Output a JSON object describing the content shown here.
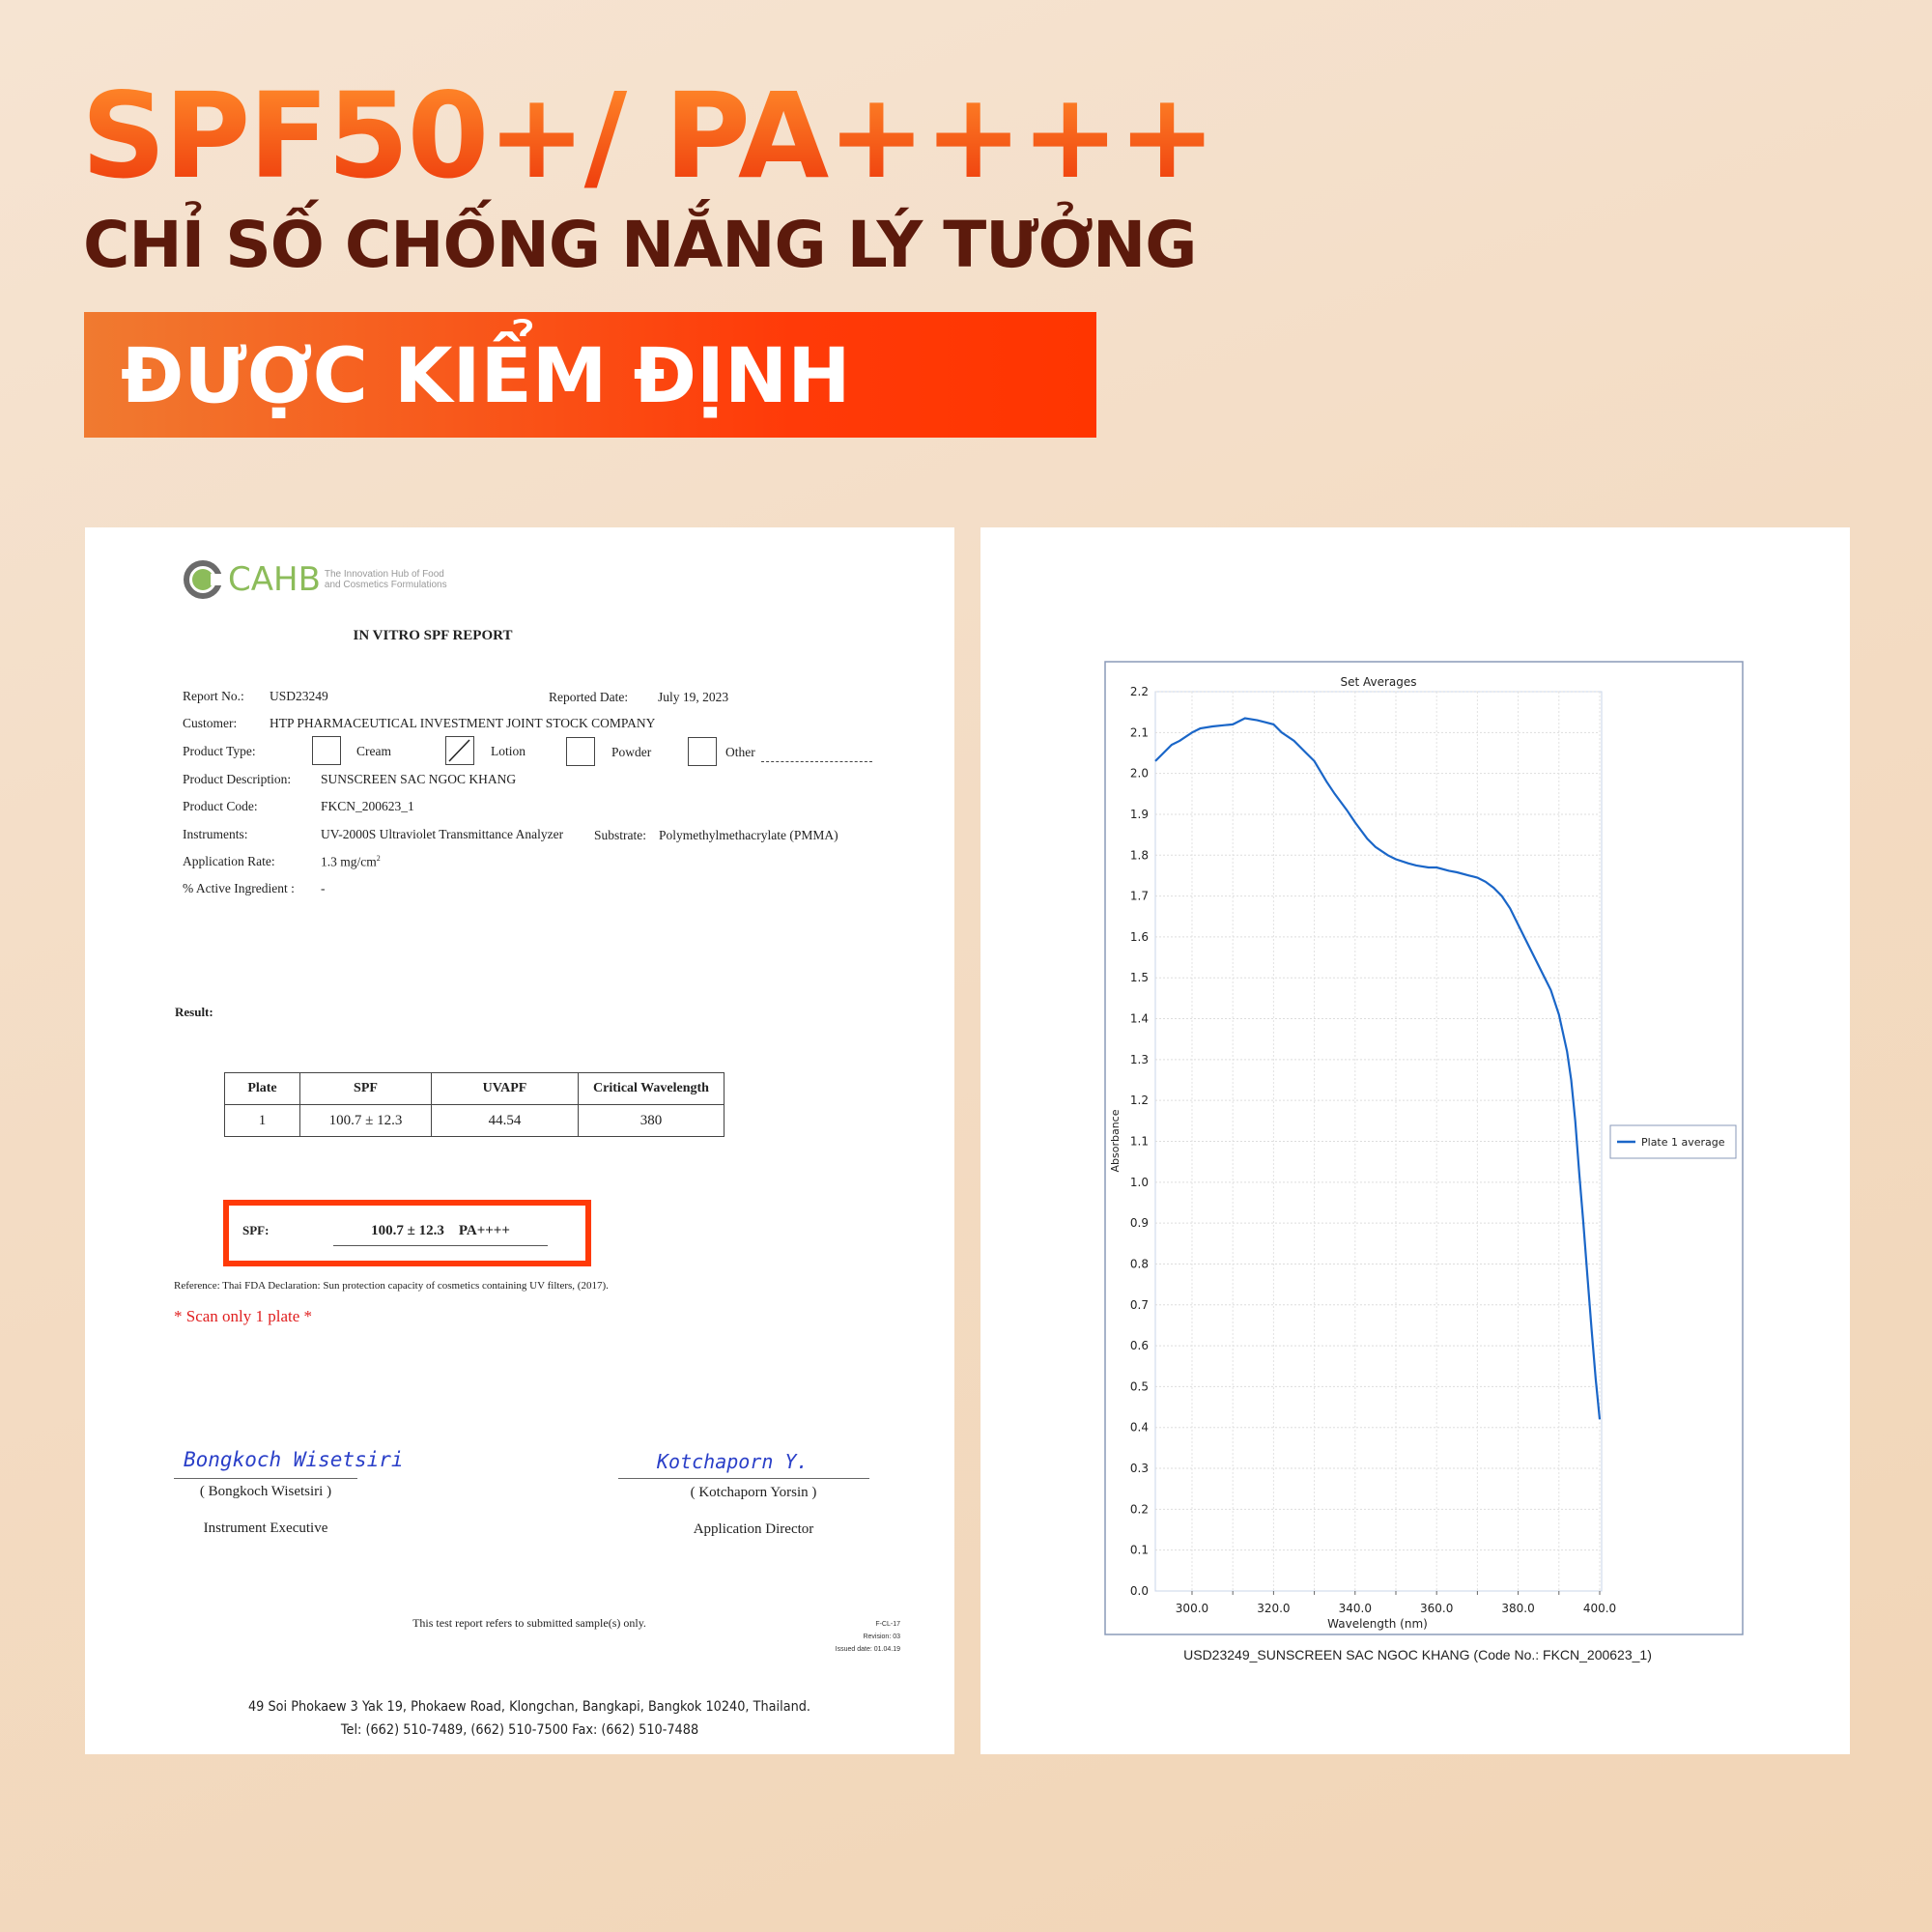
{
  "headline": "SPF50+/ PA++++",
  "subheadline": "CHỈ SỐ CHỐNG NẮNG LÝ TƯỞNG",
  "banner": "ĐƯỢC KIỂM ĐỊNH",
  "colors": {
    "accent": "#ff3a08",
    "title_dark": "#5c1a0c",
    "curve": "#1a66c8",
    "highlight_box": "#ff3a08"
  },
  "report": {
    "logo": {
      "name": "CAHB",
      "tagline1": "The Innovation Hub of Food",
      "tagline2": "and Cosmetics Formulations"
    },
    "title": "IN VITRO SPF REPORT",
    "report_no_label": "Report No.:",
    "report_no": "USD23249",
    "date_label": "Reported Date:",
    "date": "July 19, 2023",
    "customer_label": "Customer:",
    "customer": "HTP PHARMACEUTICAL INVESTMENT JOINT STOCK COMPANY",
    "product_type_label": "Product Type:",
    "product_types": [
      {
        "label": "Cream",
        "checked": false
      },
      {
        "label": "Lotion",
        "checked": true
      },
      {
        "label": "Powder",
        "checked": false
      },
      {
        "label": "Other",
        "checked": false
      }
    ],
    "description_label": "Product Description:",
    "description": "SUNSCREEN SAC NGOC KHANG",
    "code_label": "Product Code:",
    "code": "FKCN_200623_1",
    "instruments_label": "Instruments:",
    "instruments": "UV-2000S Ultraviolet Transmittance Analyzer",
    "substrate_label": "Substrate:",
    "substrate": "Polymethylmethacrylate (PMMA)",
    "rate_label": "Application Rate:",
    "rate": "1.3 mg/cm",
    "rate_sup": "2",
    "active_label": "% Active Ingredient  :",
    "active": "-",
    "result_label": "Result:",
    "table": {
      "headers": [
        "Plate",
        "SPF",
        "UVAPF",
        "Critical Wavelength"
      ],
      "rows": [
        [
          "1",
          "100.7 ± 12.3",
          "44.54",
          "380"
        ]
      ]
    },
    "spf_label": "SPF:",
    "spf_value": "100.7 ± 12.3",
    "pa_value": "PA++++",
    "reference": "Reference: Thai FDA Declaration: Sun protection capacity of cosmetics containing UV filters, (2017).",
    "note": "* Scan only 1 plate *",
    "signers": [
      {
        "signature": "Bongkoch Wisetsiri",
        "name": "( Bongkoch Wisetsiri )",
        "title": "Instrument Executive"
      },
      {
        "signature": "Kotchaporn Y.",
        "name": "( Kotchaporn Yorsin )",
        "title": "Application Director"
      }
    ],
    "disclaimer": "This test report refers to submitted sample(s) only.",
    "form_code": "F-CL-17",
    "revision": "Revision: 03",
    "issued": "Issued date: 01.04.19",
    "address": "49 Soi Phokaew 3 Yak 19, Phokaew Road, Klongchan, Bangkapi, Bangkok 10240, Thailand.",
    "phone": "Tel: (662) 510-7489, (662) 510-7500 Fax: (662) 510-7488"
  },
  "chart_data": {
    "type": "line",
    "title": "Set Averages",
    "xlabel": "Wavelength (nm)",
    "ylabel": "Absorbance",
    "xlim": [
      291,
      400
    ],
    "ylim": [
      0,
      2.2
    ],
    "xticks": [
      "300.0",
      "320.0",
      "340.0",
      "360.0",
      "380.0",
      "400.0"
    ],
    "yticks": [
      "0.0",
      "0.1",
      "0.2",
      "0.3",
      "0.4",
      "0.5",
      "0.6",
      "0.7",
      "0.8",
      "0.9",
      "1.0",
      "1.1",
      "1.2",
      "1.3",
      "1.4",
      "1.5",
      "1.6",
      "1.7",
      "1.8",
      "1.9",
      "2.0",
      "2.1",
      "2.2"
    ],
    "grid": true,
    "legend_position": "right",
    "caption": "USD23249_SUNSCREEN SAC NGOC KHANG (Code No.: FKCN_200623_1)",
    "series": [
      {
        "name": "Plate 1 average",
        "x": [
          291,
          293,
          295,
          297,
          300,
          302,
          305,
          308,
          310,
          313,
          316,
          318,
          320,
          322,
          325,
          328,
          330,
          333,
          335,
          338,
          340,
          343,
          345,
          348,
          350,
          353,
          355,
          358,
          360,
          363,
          365,
          368,
          370,
          372,
          374,
          376,
          378,
          380,
          382,
          385,
          388,
          390,
          392,
          393,
          394,
          395,
          396,
          397,
          398,
          399,
          400
        ],
        "y": [
          2.03,
          2.05,
          2.07,
          2.08,
          2.1,
          2.11,
          2.115,
          2.118,
          2.12,
          2.135,
          2.13,
          2.125,
          2.12,
          2.1,
          2.08,
          2.05,
          2.03,
          1.98,
          1.95,
          1.91,
          1.88,
          1.84,
          1.82,
          1.8,
          1.79,
          1.78,
          1.775,
          1.77,
          1.77,
          1.762,
          1.758,
          1.75,
          1.745,
          1.735,
          1.72,
          1.7,
          1.67,
          1.63,
          1.59,
          1.53,
          1.47,
          1.41,
          1.32,
          1.25,
          1.15,
          1.02,
          0.9,
          0.77,
          0.64,
          0.52,
          0.42
        ]
      }
    ]
  }
}
